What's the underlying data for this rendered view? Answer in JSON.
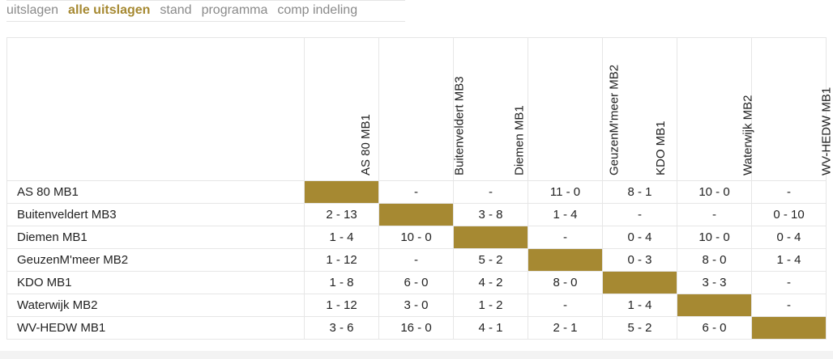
{
  "nav": {
    "items": [
      {
        "label": "uitslagen",
        "active": false
      },
      {
        "label": "alle uitslagen",
        "active": true
      },
      {
        "label": "stand",
        "active": false
      },
      {
        "label": "programma",
        "active": false
      },
      {
        "label": "comp indeling",
        "active": false
      }
    ]
  },
  "colors": {
    "accent": "#a68932",
    "nav_inactive": "#8a8a8a"
  },
  "matrix": {
    "teams": [
      "AS 80 MB1",
      "Buitenveldert MB3",
      "Diemen MB1",
      "GeuzenM'meer MB2",
      "KDO MB1",
      "Waterwijk MB2",
      "WV-HEDW MB1"
    ],
    "results": [
      [
        null,
        "-",
        "-",
        "11 - 0",
        "8 - 1",
        "10 - 0",
        "-"
      ],
      [
        "2 - 13",
        null,
        "3 - 8",
        "1 - 4",
        "-",
        "-",
        "0 - 10"
      ],
      [
        "1 - 4",
        "10 - 0",
        null,
        "-",
        "0 - 4",
        "10 - 0",
        "0 - 4"
      ],
      [
        "1 - 12",
        "-",
        "5 - 2",
        null,
        "0 - 3",
        "8 - 0",
        "1 - 4"
      ],
      [
        "1 - 8",
        "6 - 0",
        "4 - 2",
        "8 - 0",
        null,
        "3 - 3",
        "-"
      ],
      [
        "1 - 12",
        "3 - 0",
        "1 - 2",
        "-",
        "1 - 4",
        null,
        "-"
      ],
      [
        "3 - 6",
        "16 - 0",
        "4 - 1",
        "2 - 1",
        "5 - 2",
        "6 - 0",
        null
      ]
    ]
  }
}
